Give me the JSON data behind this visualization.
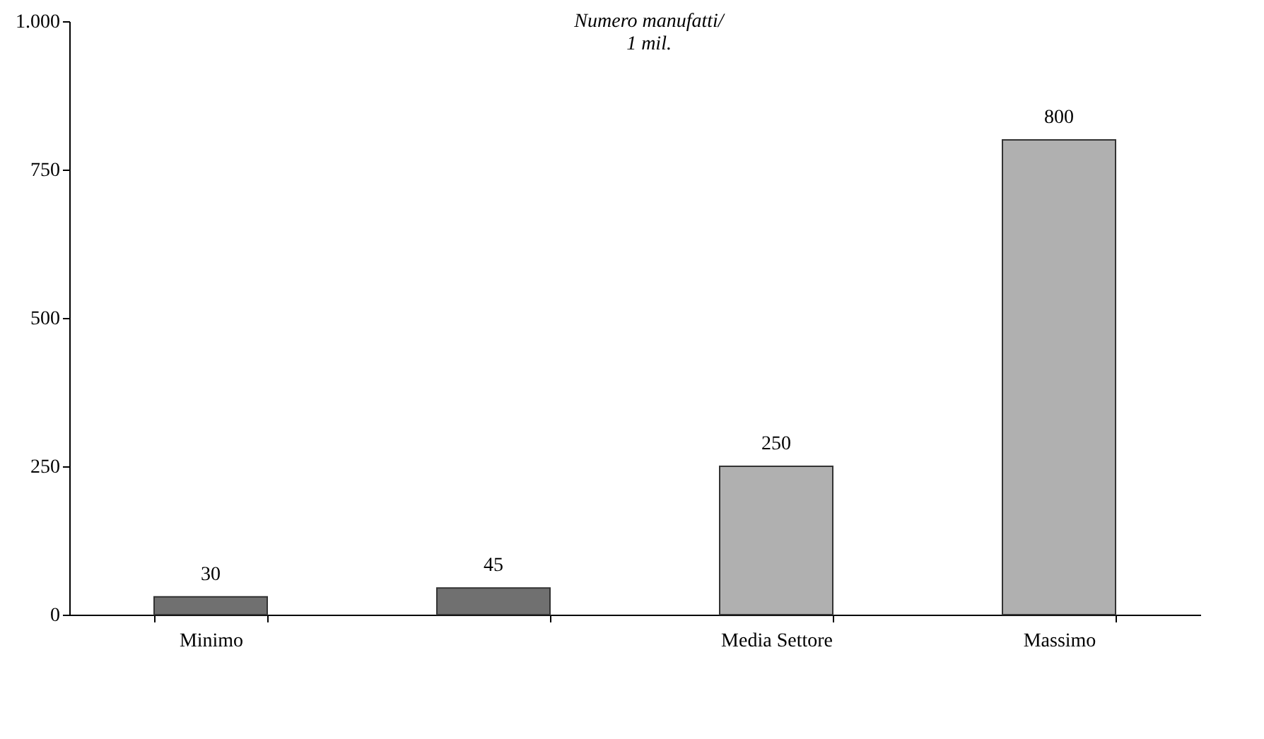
{
  "chart_data": {
    "type": "bar",
    "title": [
      "Numero manufatti/",
      "1 mil."
    ],
    "categories": [
      "Minimo",
      null,
      "Media Settore",
      "Massimo"
    ],
    "values": [
      30,
      45,
      250,
      800
    ],
    "colors": [
      "#707070",
      "#707070",
      "#b0b0b0",
      "#b0b0b0"
    ],
    "ylim": [
      0,
      1000
    ],
    "yticks": [
      0,
      250,
      500,
      750,
      {
        "value": 1000,
        "label": "1.000"
      }
    ],
    "grid": false,
    "data_labels": true
  }
}
